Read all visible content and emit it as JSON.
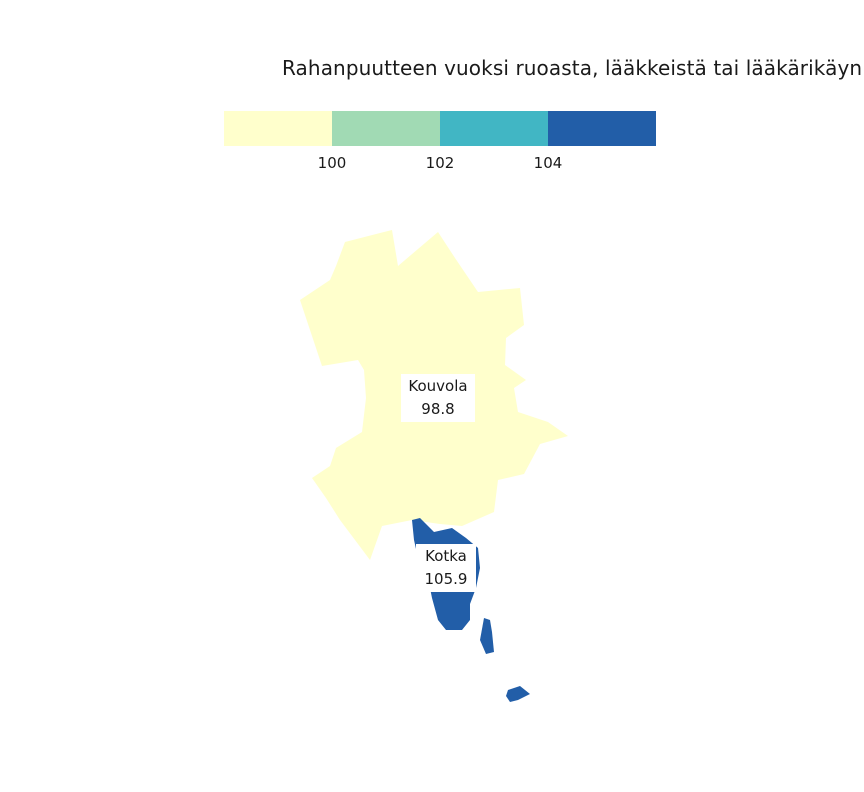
{
  "title": "Rahanpuutteen vuoksi ruoasta, lääkkeistä tai lääkärikäyn",
  "legend": {
    "bins": [
      {
        "color": "#ffffcc"
      },
      {
        "color": "#a1dab4"
      },
      {
        "color": "#41b6c4"
      },
      {
        "color": "#225ea8"
      }
    ],
    "ticks": [
      "100",
      "102",
      "104"
    ]
  },
  "regions": {
    "kouvola": {
      "name": "Kouvola",
      "value": "98.8",
      "color": "#ffffcc"
    },
    "kotka": {
      "name": "Kotka",
      "value": "105.9",
      "color": "#225ea8"
    }
  }
}
